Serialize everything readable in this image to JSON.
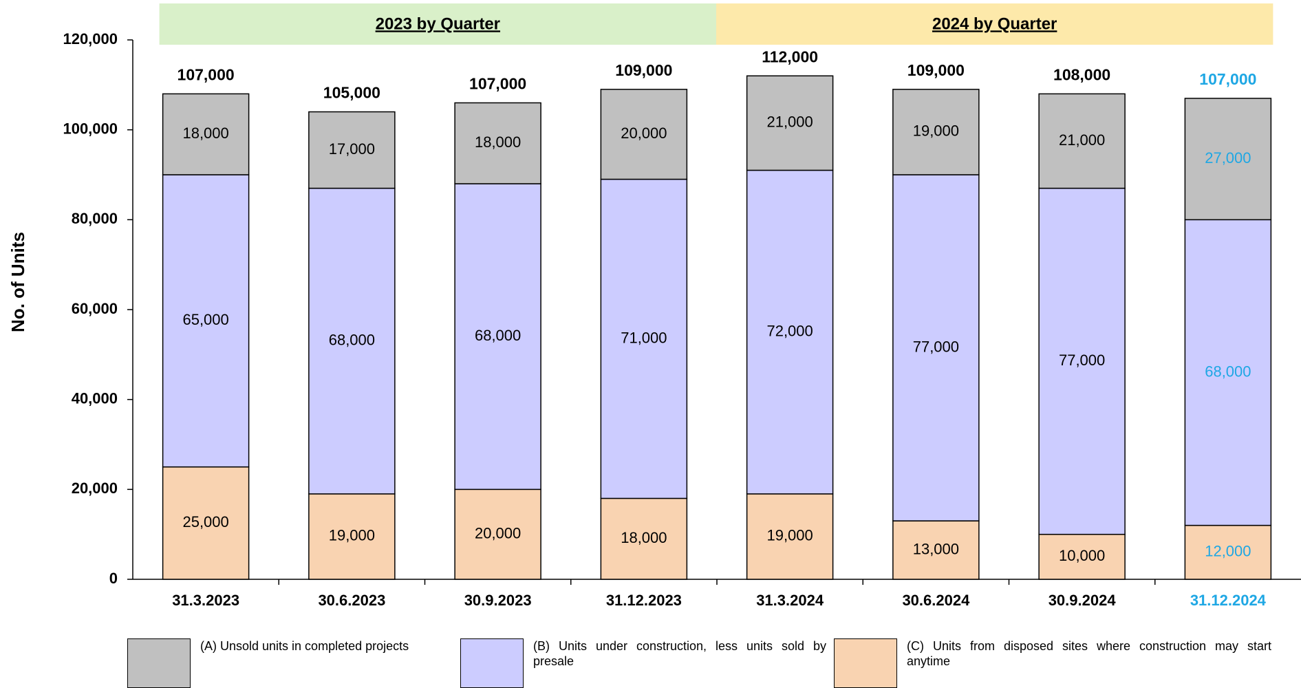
{
  "chart_data": {
    "type": "stacked_bar",
    "y_axis_label": "No. of Units",
    "groups": [
      {
        "label": "2023 by Quarter",
        "color": "#d9f0c9"
      },
      {
        "label": "2024 by Quarter",
        "color": "#fde9aa"
      }
    ],
    "categories": [
      "31.3.2023",
      "30.6.2023",
      "30.9.2023",
      "31.12.2023",
      "31.3.2024",
      "30.6.2024",
      "30.9.2024",
      "31.12.2024"
    ],
    "label_colors": [
      "#000000",
      "#000000",
      "#000000",
      "#000000",
      "#000000",
      "#000000",
      "#000000",
      "#1ea7e4"
    ],
    "series": [
      {
        "name": "(A) Unsold units in completed projects",
        "color": "#c0c0c0",
        "values": [
          18000,
          17000,
          18000,
          20000,
          21000,
          19000,
          21000,
          27000
        ],
        "value_labels": [
          "18,000",
          "17,000",
          "18,000",
          "20,000",
          "21,000",
          "19,000",
          "21,000",
          "27,000"
        ]
      },
      {
        "name": "(B) Units under construction, less units sold by presale",
        "color": "#ccccff",
        "values": [
          65000,
          68000,
          68000,
          71000,
          72000,
          77000,
          77000,
          68000
        ],
        "value_labels": [
          "65,000",
          "68,000",
          "68,000",
          "71,000",
          "72,000",
          "77,000",
          "77,000",
          "68,000"
        ]
      },
      {
        "name": "(C) Units from disposed sites where construction may start anytime",
        "color": "#f9d3b1",
        "values": [
          25000,
          19000,
          20000,
          18000,
          19000,
          13000,
          10000,
          12000
        ],
        "value_labels": [
          "25,000",
          "19,000",
          "20,000",
          "18,000",
          "19,000",
          "13,000",
          "10,000",
          "12,000"
        ]
      }
    ],
    "totals": [
      107000,
      105000,
      107000,
      109000,
      112000,
      109000,
      108000,
      107000
    ],
    "total_labels": [
      "107,000",
      "105,000",
      "107,000",
      "109,000",
      "112,000",
      "109,000",
      "108,000",
      "107,000"
    ],
    "ylim": [
      0,
      120000
    ],
    "yticks": [
      0,
      {
        "value": 20000,
        "label": "20,000"
      },
      {
        "value": 40000,
        "label": "40,000"
      },
      {
        "value": 60000,
        "label": "60,000"
      },
      {
        "value": 80000,
        "label": "80,000"
      },
      {
        "value": 100000,
        "label": "100,000"
      },
      {
        "value": 120000,
        "label": "120,000"
      }
    ]
  }
}
